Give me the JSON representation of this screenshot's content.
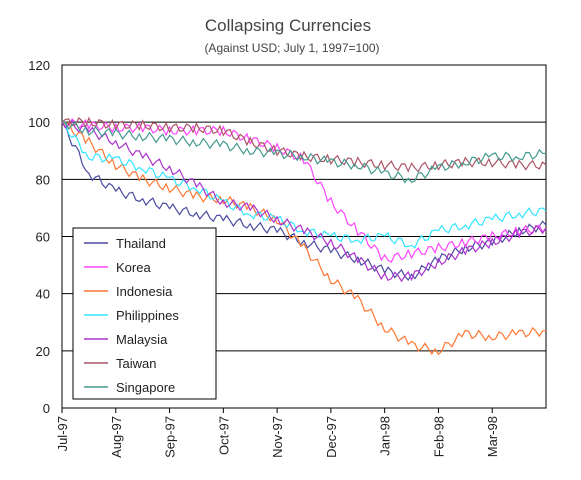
{
  "chart_data": {
    "type": "line",
    "title": "Collapsing Currencies",
    "subtitle": "(Against USD; July 1, 1997=100)",
    "xlabel": "",
    "ylabel": "",
    "x_ticks": [
      "Jul-97",
      "Aug-97",
      "Sep-97",
      "Oct-97",
      "Nov-97",
      "Dec-97",
      "Jan-98",
      "Feb-98",
      "Mar-98"
    ],
    "ylim": [
      0,
      120
    ],
    "y_ticks": [
      0,
      20,
      40,
      60,
      80,
      100,
      120
    ],
    "grid": "horizontal",
    "legend_position": "lower-left",
    "x_months": [
      0,
      0.5,
      1,
      1.5,
      2,
      2.5,
      3,
      3.5,
      4,
      4.5,
      5,
      5.5,
      6,
      6.5,
      7,
      7.5,
      8,
      8.5,
      9
    ],
    "series": [
      {
        "name": "Thailand",
        "color": "#4b4ba0",
        "values": [
          100,
          82,
          76,
          73,
          70,
          68,
          66,
          64,
          62,
          58,
          55,
          52,
          48,
          46,
          52,
          56,
          58,
          62,
          64
        ]
      },
      {
        "name": "Korea",
        "color": "#ff44ff",
        "values": [
          100,
          99,
          98,
          98,
          97,
          97,
          97,
          94,
          91,
          87,
          72,
          62,
          52,
          54,
          56,
          58,
          60,
          62,
          63
        ]
      },
      {
        "name": "Indonesia",
        "color": "#ff7733",
        "values": [
          100,
          93,
          85,
          80,
          77,
          74,
          73,
          70,
          66,
          56,
          45,
          38,
          28,
          22,
          20,
          26,
          25,
          26,
          27
        ]
      },
      {
        "name": "Philippines",
        "color": "#33e5ff",
        "values": [
          100,
          88,
          87,
          84,
          80,
          77,
          72,
          68,
          66,
          62,
          60,
          59,
          60,
          57,
          62,
          64,
          66,
          68,
          69
        ]
      },
      {
        "name": "Malaysia",
        "color": "#aa33cc",
        "values": [
          100,
          97,
          93,
          88,
          84,
          78,
          72,
          70,
          66,
          62,
          58,
          52,
          46,
          46,
          51,
          55,
          58,
          61,
          63
        ]
      },
      {
        "name": "Taiwan",
        "color": "#aa5566",
        "values": [
          100,
          100,
          99,
          99,
          98,
          98,
          97,
          93,
          90,
          88,
          87,
          86,
          85,
          84,
          85,
          86,
          86,
          85,
          85
        ]
      },
      {
        "name": "Singapore",
        "color": "#44998e",
        "values": [
          100,
          97,
          96,
          95,
          94,
          93,
          92,
          90,
          89,
          88,
          86,
          85,
          82,
          80,
          84,
          86,
          88,
          88,
          89
        ]
      }
    ]
  }
}
